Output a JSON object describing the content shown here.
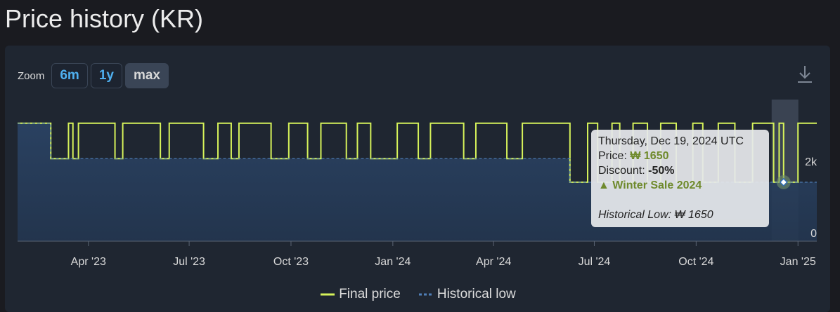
{
  "header": {
    "title": "Price history (KR)"
  },
  "zoom": {
    "label": "Zoom",
    "buttons": [
      "6m",
      "1y",
      "max"
    ],
    "active": 2
  },
  "chart_data": {
    "type": "line",
    "step": "after",
    "xlim": [
      19384,
      20106
    ],
    "xticks": [
      {
        "value": 19448,
        "label": "Apr '23"
      },
      {
        "value": 19539,
        "label": "Jul '23"
      },
      {
        "value": 19631,
        "label": "Oct '23"
      },
      {
        "value": 19723,
        "label": "Jan '24"
      },
      {
        "value": 19814,
        "label": "Apr '24"
      },
      {
        "value": 19905,
        "label": "Jul '24"
      },
      {
        "value": 19997,
        "label": "Oct '24"
      },
      {
        "value": 20089,
        "label": "Jan '25"
      }
    ],
    "ylim": [
      0,
      4000
    ],
    "yticks": [
      0,
      {
        "value": 2000,
        "label": "2k"
      }
    ],
    "series": [
      {
        "name": "Final price",
        "color": "#d6f25a",
        "style": "solid",
        "x": [
          19384,
          19414,
          19430,
          19434,
          19439,
          19472,
          19479,
          19513,
          19521,
          19552,
          19565,
          19577,
          19584,
          19613,
          19629,
          19646,
          19658,
          19681,
          19691,
          19703,
          19727,
          19746,
          19757,
          19787,
          19798,
          19826,
          19840,
          19883,
          19899,
          19908,
          19921,
          19928,
          19940,
          19953,
          19965,
          19979,
          19994,
          20003,
          20017,
          20032,
          20048,
          20067,
          20072,
          20076,
          20089,
          20106
        ],
        "values": [
          3300,
          2310,
          3300,
          2310,
          3300,
          2310,
          3300,
          2310,
          3300,
          2310,
          3300,
          2310,
          3300,
          2310,
          3300,
          2310,
          3300,
          2310,
          3300,
          2310,
          3300,
          2310,
          3300,
          2310,
          3300,
          2310,
          3300,
          1650,
          3300,
          1650,
          3300,
          1650,
          3300,
          1650,
          3300,
          1650,
          3300,
          1650,
          3300,
          1650,
          3300,
          1650,
          3300,
          1650,
          3300,
          3300
        ]
      },
      {
        "name": "Historical low",
        "color": "#4f7fb8",
        "style": "dashed",
        "x": [
          19384,
          19414,
          19883,
          20106
        ],
        "values": [
          3300,
          2310,
          1650,
          1650
        ]
      }
    ],
    "highlight": {
      "series": 0,
      "index": 43
    },
    "tooltip": {
      "date": "Thursday, Dec 19, 2024 UTC",
      "price_label": "Price:",
      "price": "₩ 1650",
      "discount_label": "Discount:",
      "discount": "-50%",
      "event": "▲ Winter Sale 2024",
      "low_label": "Historical Low:",
      "low": "₩ 1650"
    }
  }
}
